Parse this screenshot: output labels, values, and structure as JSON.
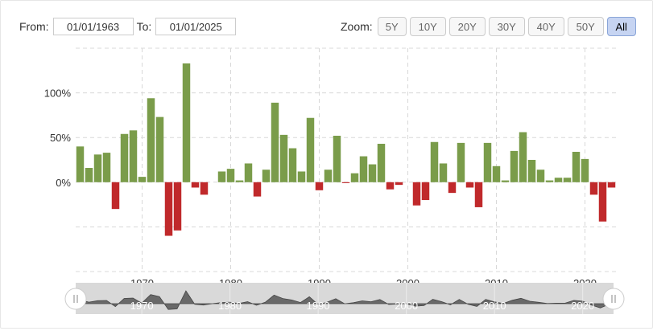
{
  "range": {
    "from_label": "From:",
    "from_value": "01/01/1963",
    "to_label": "To:",
    "to_value": "01/01/2025"
  },
  "zoom": {
    "label": "Zoom:",
    "buttons": [
      "5Y",
      "10Y",
      "20Y",
      "30Y",
      "40Y",
      "50Y",
      "All"
    ],
    "active": "All"
  },
  "colors": {
    "positive": "#7a9c4a",
    "negative": "#c0292b",
    "grid": "#d8d8d8",
    "navigator_fill": "#555555",
    "navigator_bg": "#d9d9d9"
  },
  "chart_data": {
    "type": "bar",
    "x": [
      1963,
      1964,
      1965,
      1966,
      1967,
      1968,
      1969,
      1970,
      1971,
      1972,
      1973,
      1974,
      1975,
      1976,
      1977,
      1978,
      1979,
      1980,
      1981,
      1982,
      1983,
      1984,
      1985,
      1986,
      1987,
      1988,
      1989,
      1990,
      1991,
      1992,
      1993,
      1994,
      1995,
      1996,
      1997,
      1998,
      1999,
      2000,
      2001,
      2002,
      2003,
      2004,
      2005,
      2006,
      2007,
      2008,
      2009,
      2010,
      2011,
      2012,
      2013,
      2014,
      2015,
      2016,
      2017,
      2018,
      2019,
      2020,
      2021,
      2022,
      2023
    ],
    "values": [
      40,
      16,
      31,
      33,
      -30,
      54,
      58,
      6,
      94,
      73,
      -60,
      -54,
      133,
      -6,
      -14,
      0,
      12,
      15,
      2,
      21,
      -16,
      14,
      89,
      53,
      38,
      12,
      72,
      -9,
      14,
      52,
      -1,
      10,
      29,
      20,
      43,
      -8,
      -3,
      0,
      -26,
      -20,
      45,
      21,
      -12,
      44,
      -6,
      -28,
      44,
      18,
      2,
      35,
      56,
      25,
      14,
      2,
      5,
      5,
      34,
      26,
      -14,
      -44,
      -6
    ],
    "x_ticks": [
      1970,
      1980,
      1990,
      2000,
      2010,
      2020
    ],
    "y_ticks": [
      0,
      50,
      100
    ],
    "y_tick_labels": [
      "0%",
      "50%",
      "100%"
    ],
    "ylim": [
      -100,
      150
    ],
    "xlim": [
      1962.5,
      2023.5
    ],
    "grid": true,
    "legend": "none",
    "navigator": {
      "x_ticks": [
        1970,
        1980,
        1990,
        2000,
        2010,
        2020
      ]
    }
  }
}
